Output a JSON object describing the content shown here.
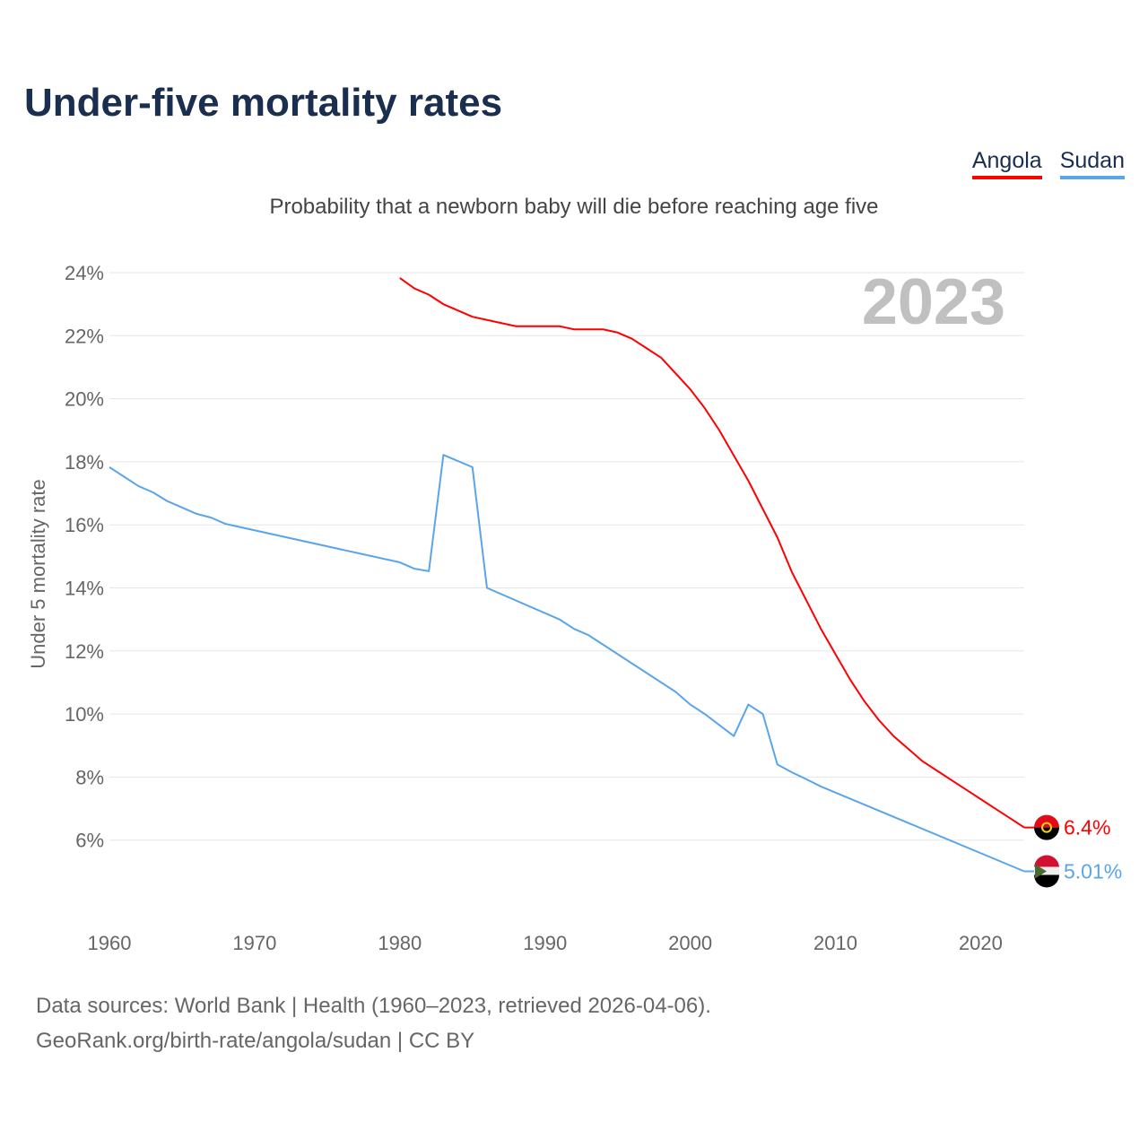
{
  "title": "Under-five mortality rates",
  "subtitle": "Probability that a newborn baby will die before reaching age five",
  "source_line1": "Data sources: World Bank | Health (1960–2023, retrieved 2026-04-06).",
  "source_line2": "GeoRank.org/birth-rate/angola/sudan | CC BY",
  "chart_data": {
    "type": "line",
    "title": "Under-five mortality rates",
    "ylabel": "Under 5 mortality rate",
    "xlabel": "",
    "year_label": "2023",
    "xlim": [
      1960,
      2023
    ],
    "ylim": [
      4,
      24
    ],
    "x_ticks": [
      1960,
      1970,
      1980,
      1990,
      2000,
      2010,
      2020
    ],
    "y_ticks": [
      6,
      8,
      10,
      12,
      14,
      16,
      18,
      20,
      22,
      24
    ],
    "grid": true,
    "legend_position": "top-right",
    "series": [
      {
        "name": "Angola",
        "color": "#ff0000",
        "end_label": "6.4%",
        "x": [
          1980,
          1981,
          1982,
          1983,
          1984,
          1985,
          1986,
          1987,
          1988,
          1989,
          1990,
          1991,
          1992,
          1993,
          1994,
          1995,
          1996,
          1997,
          1998,
          1999,
          2000,
          2001,
          2002,
          2003,
          2004,
          2005,
          2006,
          2007,
          2008,
          2009,
          2010,
          2011,
          2012,
          2013,
          2014,
          2015,
          2016,
          2017,
          2018,
          2019,
          2020,
          2021,
          2022,
          2023
        ],
        "values": [
          23.83,
          23.5,
          23.3,
          23.0,
          22.8,
          22.6,
          22.5,
          22.4,
          22.3,
          22.3,
          22.3,
          22.3,
          22.2,
          22.2,
          22.2,
          22.1,
          21.9,
          21.6,
          21.3,
          20.8,
          20.3,
          19.7,
          19.0,
          18.2,
          17.4,
          16.5,
          15.6,
          14.5,
          13.6,
          12.7,
          11.9,
          11.1,
          10.4,
          9.8,
          9.3,
          8.9,
          8.5,
          8.2,
          7.9,
          7.6,
          7.3,
          7.0,
          6.7,
          6.4
        ]
      },
      {
        "name": "Sudan",
        "color": "#5aa5ea",
        "end_label": "5.01%",
        "x": [
          1960,
          1962,
          1963,
          1964,
          1966,
          1967,
          1968,
          1980,
          1981,
          1982,
          1983,
          1985,
          1986,
          1991,
          1992,
          1993,
          1999,
          2000,
          2001,
          2003,
          2004,
          2005,
          2006,
          2007,
          2008,
          2009,
          2023
        ],
        "values": [
          17.83,
          17.23,
          17.03,
          16.75,
          16.35,
          16.23,
          16.03,
          14.81,
          14.61,
          14.53,
          18.22,
          17.83,
          14.0,
          13.0,
          12.7,
          12.5,
          10.7,
          10.3,
          10.0,
          9.3,
          10.3,
          10.0,
          8.4,
          8.15,
          7.93,
          7.7,
          5.01
        ]
      }
    ]
  }
}
